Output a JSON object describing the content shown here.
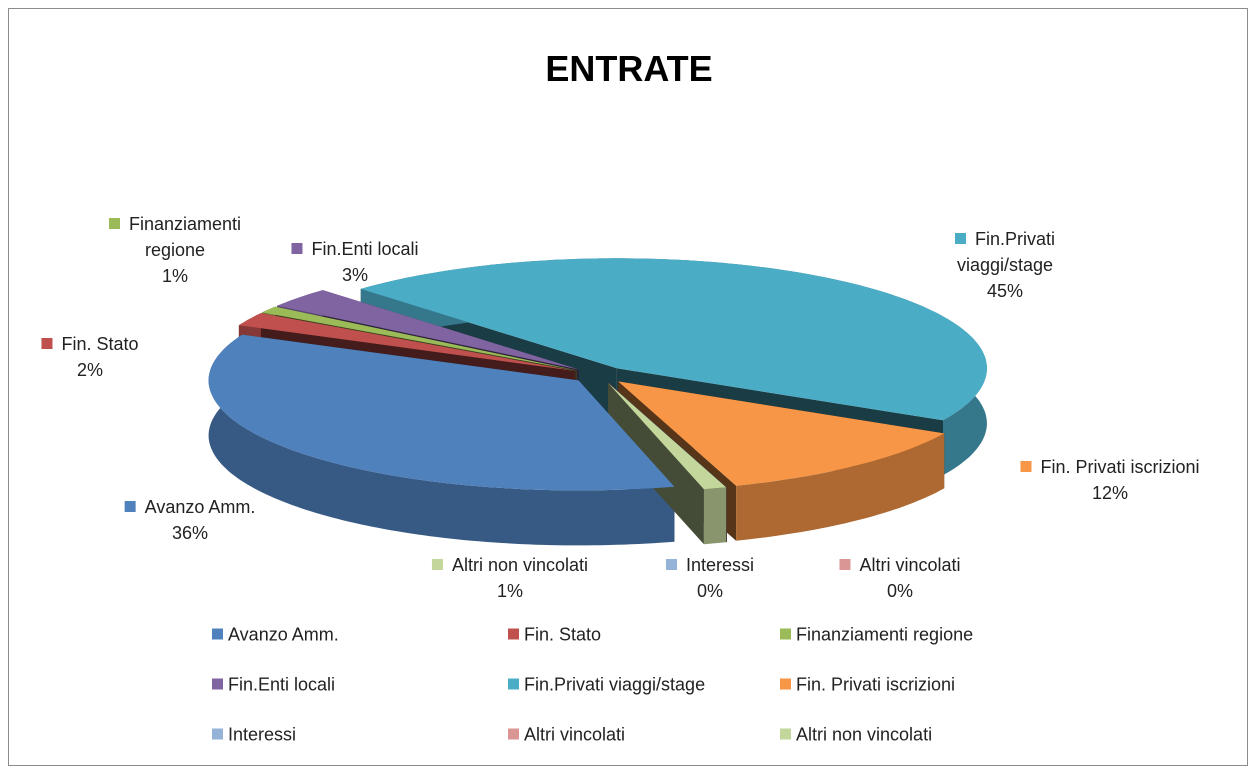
{
  "chart_data": {
    "type": "pie",
    "title": "ENTRATE",
    "categories": [
      "Avanzo Amm.",
      "Fin. Stato",
      "Finanziamenti regione",
      "Fin.Enti locali",
      "Fin.Privati viaggi/stage",
      "Fin. Privati iscrizioni",
      "Interessi",
      "Altri vincolati",
      "Altri non vincolati"
    ],
    "values": [
      36,
      2,
      1,
      3,
      45,
      12,
      0,
      0,
      1
    ],
    "value_labels": [
      "36%",
      "2%",
      "1%",
      "3%",
      "45%",
      "12%",
      "0%",
      "0%",
      "1%"
    ],
    "colors": [
      "#4f81bd",
      "#c0504d",
      "#9bbb59",
      "#8064a2",
      "#4bacc6",
      "#f79646",
      "#95b3d7",
      "#da9694",
      "#c3d69b"
    ],
    "legend": "bottom"
  }
}
